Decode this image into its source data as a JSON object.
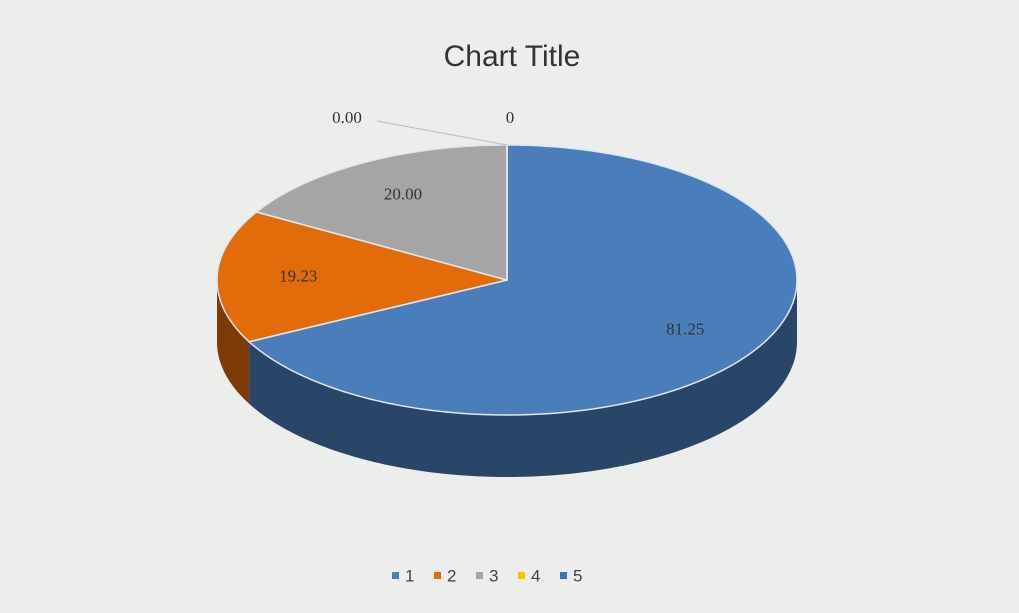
{
  "chart_data": {
    "type": "pie3d",
    "title": "Chart Title",
    "categories": [
      "1",
      "2",
      "3",
      "4",
      "5"
    ],
    "values": [
      81.25,
      19.23,
      20,
      0,
      0
    ],
    "value_labels": [
      "81.25",
      "19.23",
      "20.00",
      "0.00",
      "0"
    ],
    "colors": [
      "#4a7ebb",
      "#e36c0a",
      "#a5a5a5",
      "#ffc000",
      "#3f6fb8"
    ],
    "legend": "bottom"
  }
}
